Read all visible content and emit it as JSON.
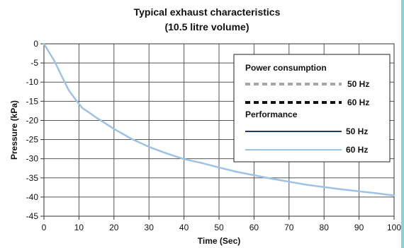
{
  "chart_data": {
    "type": "line",
    "title": "Typical exhaust characteristics",
    "subtitle": "(10.5 litre volume)",
    "xlabel": "Time (Sec)",
    "ylabel": "Pressure (kPa)",
    "xlim": [
      0,
      100
    ],
    "ylim": [
      -45,
      0
    ],
    "xticks": [
      0,
      10,
      20,
      30,
      40,
      50,
      60,
      70,
      80,
      90,
      100
    ],
    "yticks": [
      0,
      -5,
      -10,
      -15,
      -20,
      -25,
      -30,
      -35,
      -40,
      -45
    ],
    "grid": true,
    "legend_placement": "top-right",
    "legend": {
      "groups": [
        {
          "title": "Power consumption",
          "entries": [
            "50 Hz",
            "60 Hz"
          ]
        },
        {
          "title": "Performance",
          "entries": [
            "50 Hz",
            "60 Hz"
          ]
        }
      ]
    },
    "series": [
      {
        "name": "Power consumption 50 Hz",
        "color": "#a6a6a6",
        "style": "dashed",
        "x": [],
        "y": []
      },
      {
        "name": "Power consumption 60 Hz",
        "color": "#111111",
        "style": "dashed",
        "x": [],
        "y": []
      },
      {
        "name": "Performance 50 Hz",
        "color": "#1f3864",
        "style": "solid",
        "x": [],
        "y": []
      },
      {
        "name": "Performance 60 Hz",
        "color": "#9cc3e5",
        "style": "solid",
        "x": [
          0,
          3,
          5,
          7,
          9,
          11,
          13,
          15,
          20,
          25,
          30,
          35,
          40,
          45,
          50,
          55,
          60,
          65,
          70,
          75,
          80,
          85,
          90,
          95,
          100
        ],
        "y": [
          0,
          -4.5,
          -8.3,
          -12,
          -14.5,
          -16.8,
          -18,
          -19.3,
          -22.2,
          -24.8,
          -26.9,
          -28.6,
          -30.1,
          -31.1,
          -32.3,
          -33.4,
          -34.3,
          -35.2,
          -36,
          -36.8,
          -37.4,
          -38,
          -38.5,
          -39,
          -39.6
        ]
      }
    ]
  }
}
